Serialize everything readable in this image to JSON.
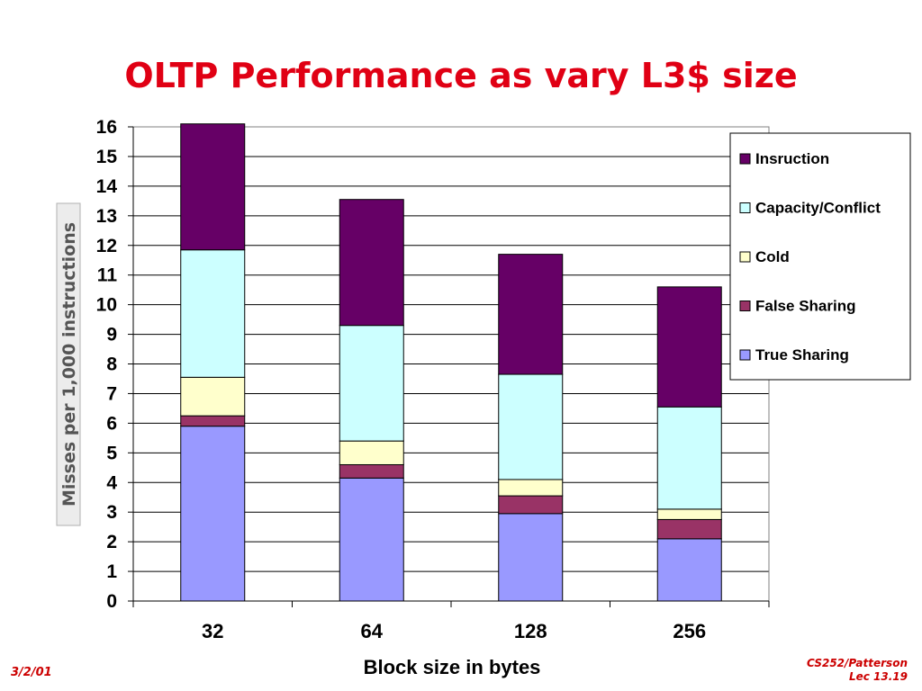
{
  "slide": {
    "title": "OLTP Performance as vary L3$ size",
    "footer_left": "3/2/01",
    "footer_right_line1": "CS252/Patterson",
    "footer_right_line2": "Lec 13.19"
  },
  "chart_data": {
    "type": "bar",
    "stacked": true,
    "title": "",
    "xlabel": "Block size in bytes",
    "ylabel": "Misses per 1,000 instructions",
    "ylim": [
      0,
      16
    ],
    "yticks": [
      0,
      1,
      2,
      3,
      4,
      5,
      6,
      7,
      8,
      9,
      10,
      11,
      12,
      13,
      14,
      15,
      16
    ],
    "grid": true,
    "legend_position": "top-right",
    "categories": [
      "32",
      "64",
      "128",
      "256"
    ],
    "series": [
      {
        "name": "True Sharing",
        "color": "#9999ff",
        "values": [
          5.9,
          4.15,
          2.95,
          2.1
        ]
      },
      {
        "name": "False Sharing",
        "color": "#993366",
        "values": [
          0.35,
          0.45,
          0.6,
          0.65
        ]
      },
      {
        "name": "Cold",
        "color": "#ffffcc",
        "values": [
          1.3,
          0.8,
          0.55,
          0.35
        ]
      },
      {
        "name": "Capacity/Conflict",
        "color": "#ccffff",
        "values": [
          4.3,
          3.9,
          3.55,
          3.45
        ]
      },
      {
        "name": "Insruction",
        "color": "#660066",
        "values": [
          4.25,
          4.25,
          4.05,
          4.05
        ]
      }
    ]
  }
}
